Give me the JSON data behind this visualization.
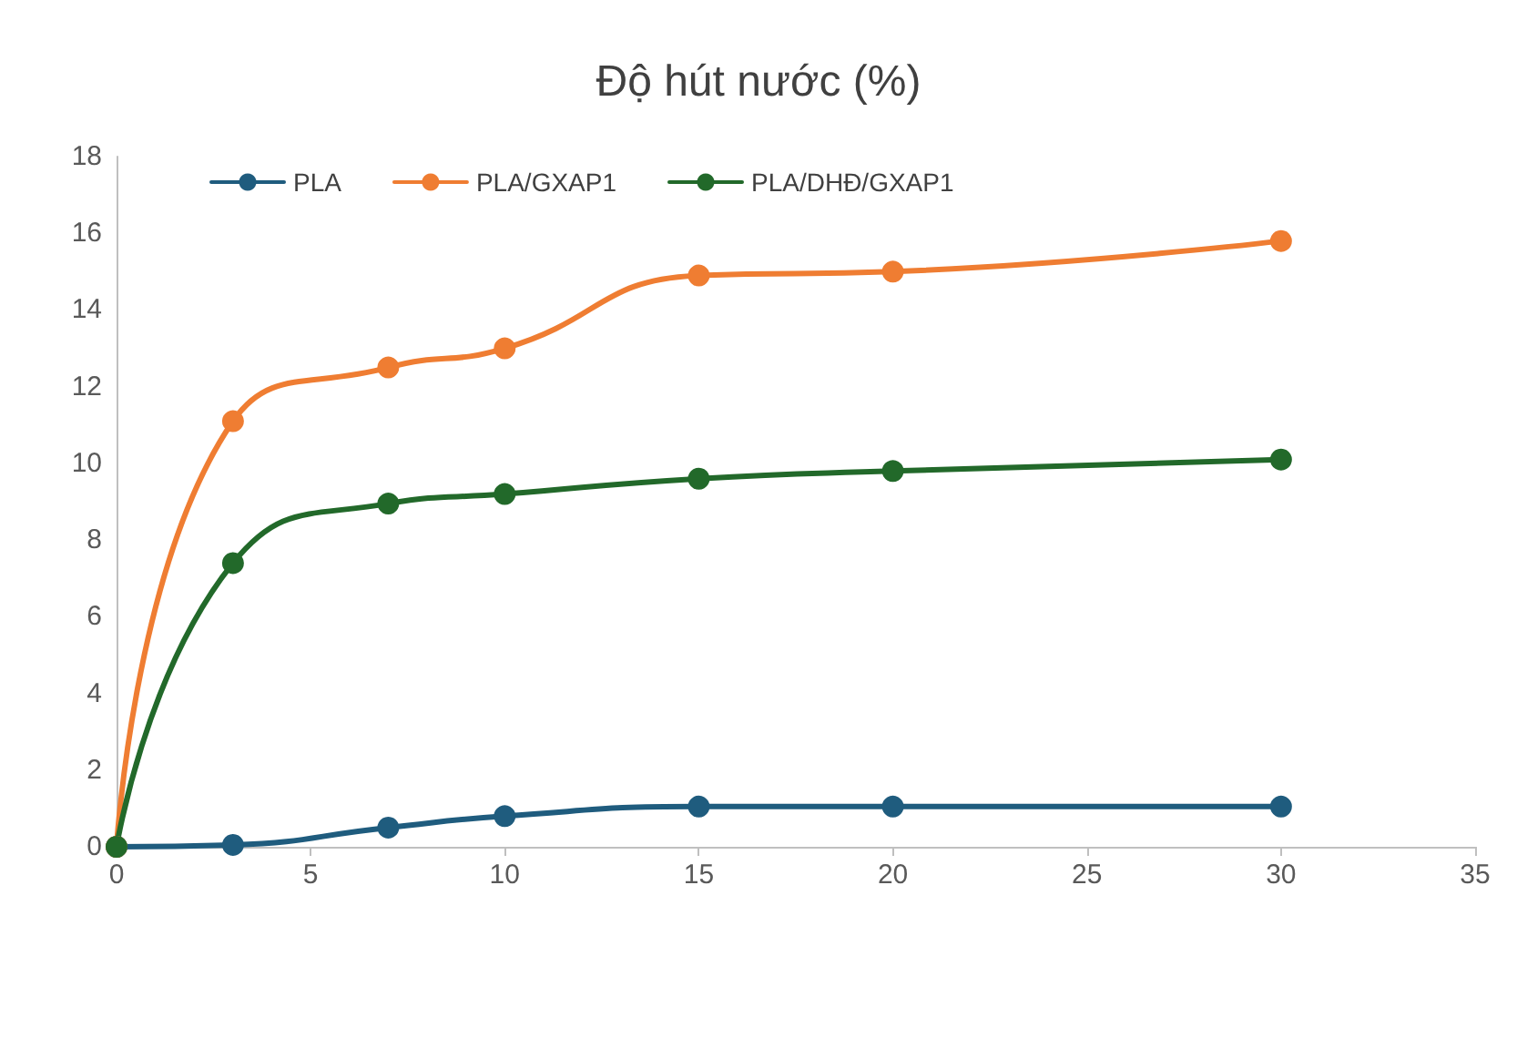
{
  "chart_data": {
    "type": "line",
    "title": "Độ hút nước (%)",
    "x": [
      0,
      3,
      7,
      10,
      15,
      20,
      30
    ],
    "series": [
      {
        "name": "PLA",
        "color": "#1f5c7e",
        "values": [
          0,
          0.05,
          0.5,
          0.8,
          1.05,
          1.05,
          1.05
        ]
      },
      {
        "name": "PLA/GXAP1",
        "color": "#ef7d32",
        "values": [
          0,
          11.1,
          12.5,
          13,
          14.9,
          15,
          15.8
        ]
      },
      {
        "name": "PLA/DHĐ/GXAP1",
        "color": "#22692a",
        "values": [
          0,
          7.4,
          8.95,
          9.2,
          9.6,
          9.8,
          10.1
        ]
      }
    ],
    "xlim": [
      0,
      35
    ],
    "xticks": [
      0,
      5,
      10,
      15,
      20,
      25,
      30,
      35
    ],
    "ylim": [
      0,
      18
    ],
    "yticks": [
      0,
      2,
      4,
      6,
      8,
      10,
      12,
      14,
      16,
      18
    ],
    "grid": false,
    "legend": "top left",
    "marker": "circle",
    "line_style": "solid"
  }
}
